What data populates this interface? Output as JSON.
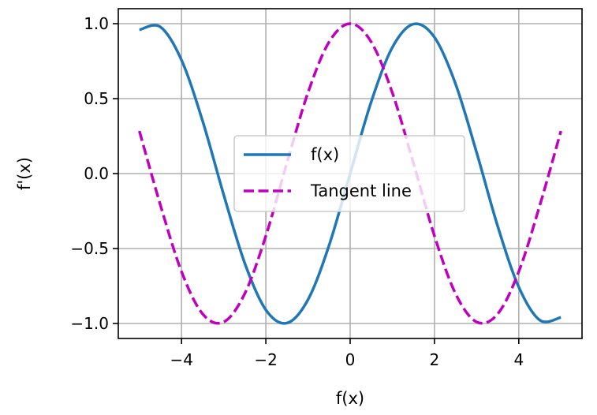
{
  "chart_data": {
    "type": "line",
    "title": "",
    "xlabel": "f(x)",
    "ylabel": "f'(x)",
    "xlim": [
      -5.5,
      5.5
    ],
    "ylim": [
      -1.1,
      1.1
    ],
    "xticks": [
      -4,
      -2,
      0,
      2,
      4
    ],
    "xtick_labels": [
      "−4",
      "−2",
      "0",
      "2",
      "4"
    ],
    "yticks": [
      -1.0,
      -0.5,
      0.0,
      0.5,
      1.0
    ],
    "ytick_labels": [
      "−1.0",
      "−0.5",
      "0.0",
      "0.5",
      "1.0"
    ],
    "grid": true,
    "legend_position": "center-right",
    "x": [
      -5.0,
      -4.5,
      -4.0,
      -3.5,
      -3.0,
      -2.5,
      -2.0,
      -1.5,
      -1.0,
      -0.5,
      0.0,
      0.5,
      1.0,
      1.5,
      2.0,
      2.5,
      3.0,
      3.5,
      4.0,
      4.5,
      5.0
    ],
    "series": [
      {
        "name": "f(x)",
        "color": "#1f77b4",
        "style": "solid",
        "values": [
          0.959,
          0.978,
          0.757,
          0.351,
          -0.141,
          -0.598,
          -0.909,
          -0.997,
          -0.841,
          -0.479,
          0.0,
          0.479,
          0.841,
          0.997,
          0.909,
          0.598,
          0.141,
          -0.351,
          -0.757,
          -0.978,
          -0.959
        ]
      },
      {
        "name": "Tangent line",
        "color": "#bf00bf",
        "style": "dashed",
        "values": [
          0.284,
          -0.211,
          -0.654,
          -0.936,
          -0.99,
          -0.801,
          -0.416,
          0.071,
          0.54,
          0.878,
          1.0,
          0.878,
          0.54,
          0.071,
          -0.416,
          -0.801,
          -0.99,
          -0.936,
          -0.654,
          -0.211,
          0.284
        ]
      }
    ]
  }
}
